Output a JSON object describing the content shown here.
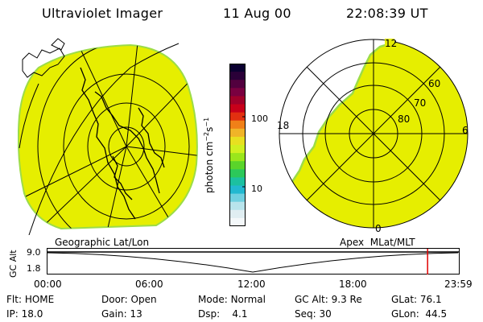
{
  "header": {
    "app_title": "Ultraviolet Imager",
    "date": "11 Aug 00",
    "time": "22:08:39 UT"
  },
  "colors": {
    "image_fill": "#e6ee00",
    "image_edge": "#9cdc48",
    "grid_line": "#000000",
    "time_marker": "#e00000"
  },
  "colorbar": {
    "unit_label": "photon cm",
    "unit_exp1": "−2",
    "unit_mid": "s",
    "unit_exp2": "−1",
    "ticks": [
      "100",
      "10"
    ],
    "stops": [
      "#0a0030",
      "#2a0038",
      "#52003e",
      "#7a0040",
      "#a0002a",
      "#c8001a",
      "#e23010",
      "#f08018",
      "#f0b428",
      "#e8e020",
      "#d0f020",
      "#9ae61c",
      "#5ad42a",
      "#2cc85a",
      "#1cc0a0",
      "#22b8d0",
      "#70d0e0",
      "#b8e4ec",
      "#e0eef2",
      "#f4f8fa"
    ]
  },
  "geo_panel": {
    "label": "Geographic Lat/Lon"
  },
  "polar_panel": {
    "label": "Apex  MLat/MLT",
    "mlt_labels": [
      "12",
      "18",
      "6",
      "0"
    ],
    "mlat_labels": [
      "60",
      "70",
      "80"
    ]
  },
  "timeline": {
    "axis_label": "GC Alt",
    "ymax": "9.0",
    "ymin": "1.8",
    "time_ticks": [
      "00:00",
      "06:00",
      "12:00",
      "18:00",
      "23:59"
    ],
    "current_fraction": 0.924
  },
  "status": {
    "flt_label": "Flt:",
    "flt_value": "HOME",
    "ip_label": "IP:",
    "ip_value": "18.0",
    "door_label": "Door:",
    "door_value": "Open",
    "gain_label": "Gain:",
    "gain_value": "13",
    "mode_label": "Mode:",
    "mode_value": "Normal",
    "dsp_label": "Dsp:",
    "dsp_value": "4.1",
    "gcalt_label": "GC Alt:",
    "gcalt_value": "9.3 Re",
    "seq_label": "Seq:",
    "seq_value": "30",
    "glat_label": "GLat:",
    "glat_value": "76.1",
    "glon_label": "GLon:",
    "glon_value": "44.5"
  }
}
